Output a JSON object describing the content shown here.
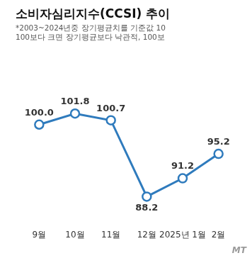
{
  "chart_data": {
    "type": "line",
    "title": "소비자심리지수(CCSI) 추이",
    "subtitle": [
      "*2003~2024년중 장기평균치를 기준값 10",
      "100보다 크면 장기평균보다 낙관적, 100보"
    ],
    "categories": [
      "9월",
      "10월",
      "11월",
      "12월",
      "2025년 1월",
      "2월"
    ],
    "values": [
      100.0,
      101.8,
      100.7,
      88.2,
      91.2,
      95.2
    ],
    "value_labels": [
      "100.0",
      "101.8",
      "100.7",
      "88.2",
      "91.2",
      "95.2"
    ],
    "color": "#2f7bbd",
    "marker": "circle",
    "ylim": [
      84,
      110
    ],
    "grid": false,
    "tick_labels": "x",
    "data_labels": true,
    "watermark": "MT"
  }
}
